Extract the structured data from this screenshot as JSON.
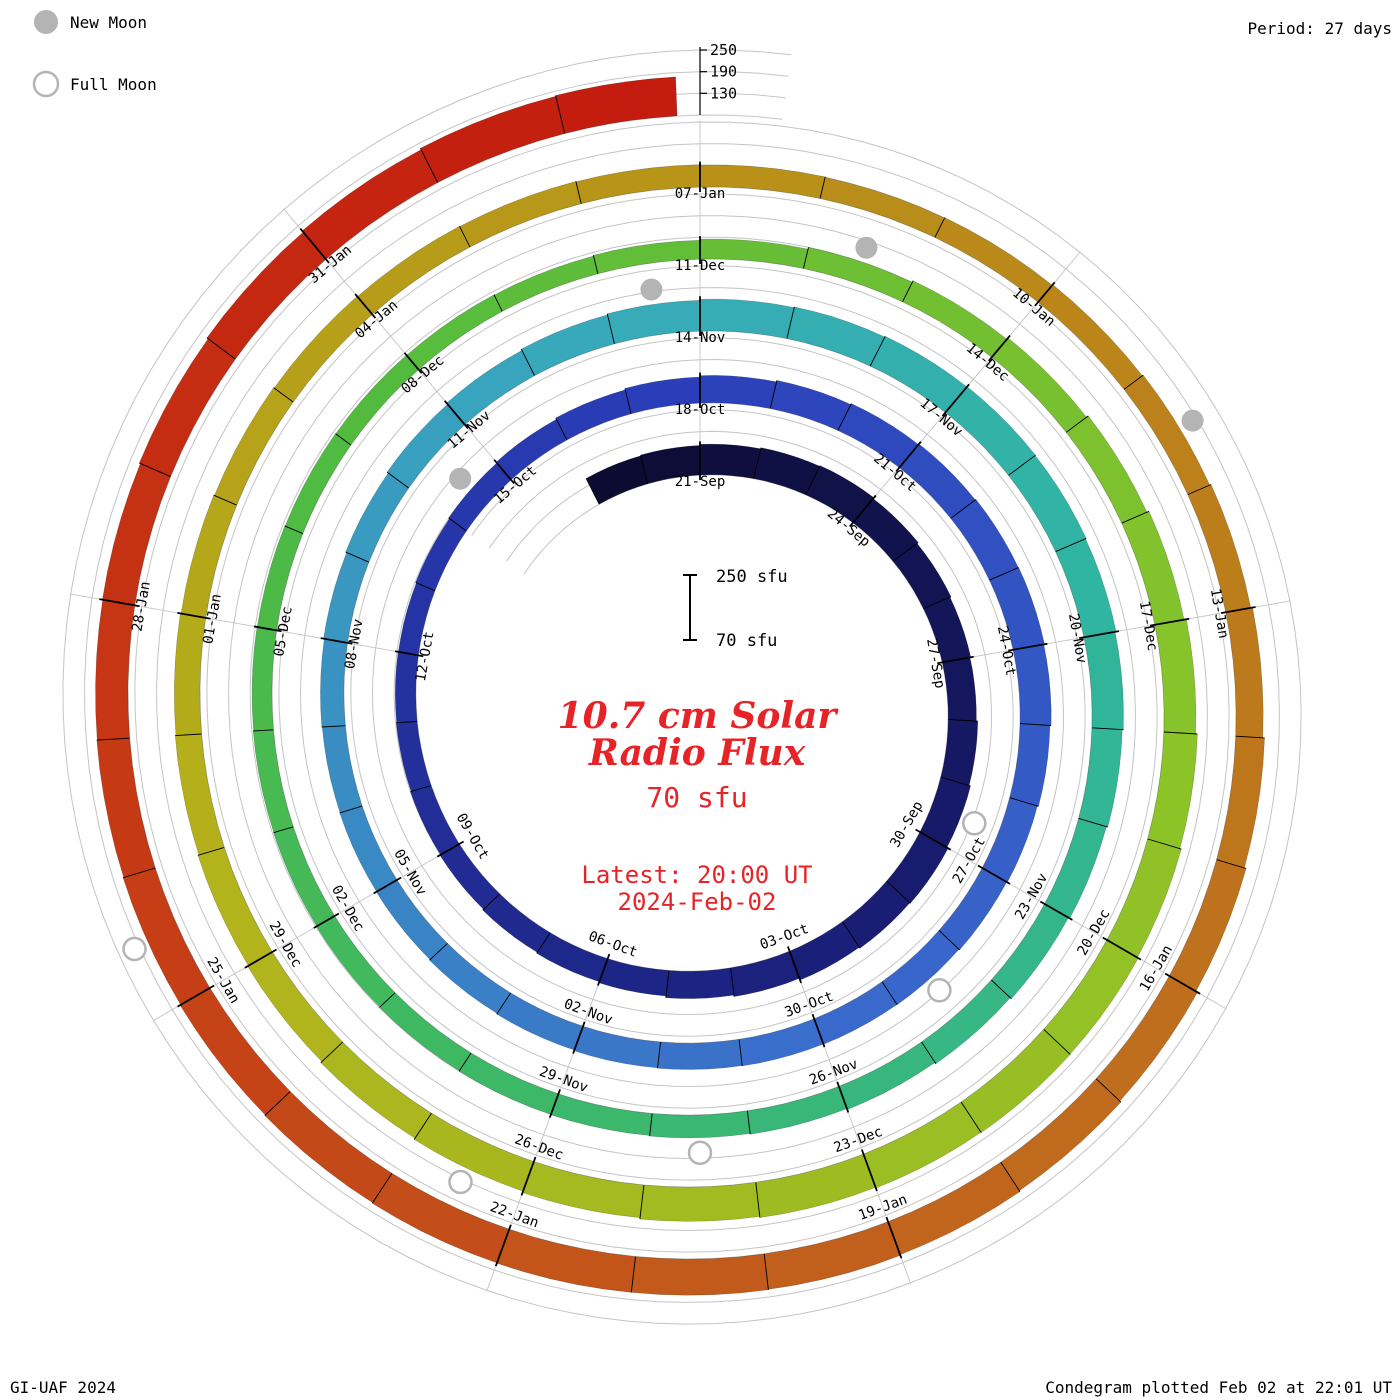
{
  "legend": {
    "new_moon_label": "New Moon",
    "full_moon_label": "Full Moon"
  },
  "header": {
    "period_label": "Period: 27 days"
  },
  "footer": {
    "credit": "GI-UAF 2024",
    "plotted": "Condegram plotted Feb 02 at 22:01 UT"
  },
  "center": {
    "title_line1": "10.7 cm Solar",
    "title_line2": "Radio Flux",
    "base_value_label": "70 sfu",
    "latest_line1": "Latest: 20:00 UT",
    "latest_line2": "2024-Feb-02",
    "scalebar_top_label": "250 sfu",
    "scalebar_bottom_label": "70 sfu"
  },
  "chart_data": {
    "type": "spiral_condegram",
    "title": "10.7 cm Solar Radio Flux",
    "units": "sfu",
    "period_days": 27,
    "flux_base": 70,
    "flux_axis_max": 250,
    "axis_ticks": [
      130,
      190,
      250
    ],
    "reference_date": "2023-09-21",
    "start_date": "2023-09-19",
    "latest_date": "2024-02-02",
    "latest_time_ut": "20:00",
    "date_labels": [
      "21-Sep",
      "24-Sep",
      "27-Sep",
      "30-Sep",
      "03-Oct",
      "06-Oct",
      "09-Oct",
      "12-Oct",
      "15-Oct",
      "18-Oct",
      "21-Oct",
      "24-Oct",
      "27-Oct",
      "30-Oct",
      "02-Nov",
      "05-Nov",
      "08-Nov",
      "11-Nov",
      "14-Nov",
      "17-Nov",
      "20-Nov",
      "23-Nov",
      "26-Nov",
      "29-Nov",
      "02-Dec",
      "05-Dec",
      "08-Dec",
      "11-Dec",
      "14-Dec",
      "17-Dec",
      "20-Dec",
      "23-Dec",
      "26-Dec",
      "29-Dec",
      "01-Jan",
      "04-Jan",
      "07-Jan",
      "10-Jan",
      "13-Jan",
      "16-Jan",
      "19-Jan",
      "22-Jan",
      "25-Jan",
      "28-Jan",
      "31-Jan"
    ],
    "daily_flux": [
      150,
      152,
      155,
      158,
      160,
      157,
      153,
      150,
      148,
      152,
      156,
      160,
      158,
      155,
      150,
      146,
      141,
      138,
      135,
      132,
      130,
      128,
      127,
      126,
      128,
      131,
      134,
      138,
      142,
      146,
      150,
      153,
      155,
      157,
      158,
      156,
      153,
      150,
      148,
      146,
      145,
      144,
      143,
      142,
      140,
      138,
      136,
      135,
      134,
      135,
      137,
      140,
      144,
      148,
      152,
      155,
      158,
      160,
      162,
      163,
      162,
      160,
      157,
      154,
      150,
      146,
      142,
      138,
      135,
      133,
      131,
      130,
      129,
      128,
      127,
      126,
      125,
      124,
      123,
      122,
      121,
      120,
      122,
      125,
      130,
      135,
      140,
      146,
      152,
      158,
      163,
      167,
      170,
      171,
      170,
      168,
      165,
      161,
      157,
      153,
      149,
      146,
      143,
      141,
      139,
      137,
      135,
      134,
      133,
      132,
      131,
      130,
      131,
      133,
      136,
      140,
      145,
      150,
      155,
      160,
      164,
      167,
      169,
      170,
      170,
      169,
      167,
      165,
      163,
      161,
      160,
      161,
      164,
      168,
      172,
      176,
      178
    ],
    "new_moons": [
      "2023-10-14",
      "2023-11-13",
      "2023-12-12",
      "2024-01-11"
    ],
    "full_moons": [
      "2023-09-29",
      "2023-10-28",
      "2023-11-27",
      "2023-12-26",
      "2024-01-25"
    ],
    "color_stops": [
      [
        0,
        "#0b0b30"
      ],
      [
        0.1,
        "#1a1f7a"
      ],
      [
        0.21,
        "#2b3fba"
      ],
      [
        0.3,
        "#3a6ccc"
      ],
      [
        0.4,
        "#38aabb"
      ],
      [
        0.45,
        "#2fb5a0"
      ],
      [
        0.52,
        "#3cb868"
      ],
      [
        0.58,
        "#52bb3e"
      ],
      [
        0.66,
        "#8cc428"
      ],
      [
        0.74,
        "#b3b31c"
      ],
      [
        0.8,
        "#b89418"
      ],
      [
        0.88,
        "#c06a1e"
      ],
      [
        0.94,
        "#c63c16"
      ],
      [
        1,
        "#c41a0e"
      ]
    ],
    "grid_color": "#c4c4c4",
    "accent_red": "#e62428",
    "moon_gray": "#b4b4b4"
  }
}
